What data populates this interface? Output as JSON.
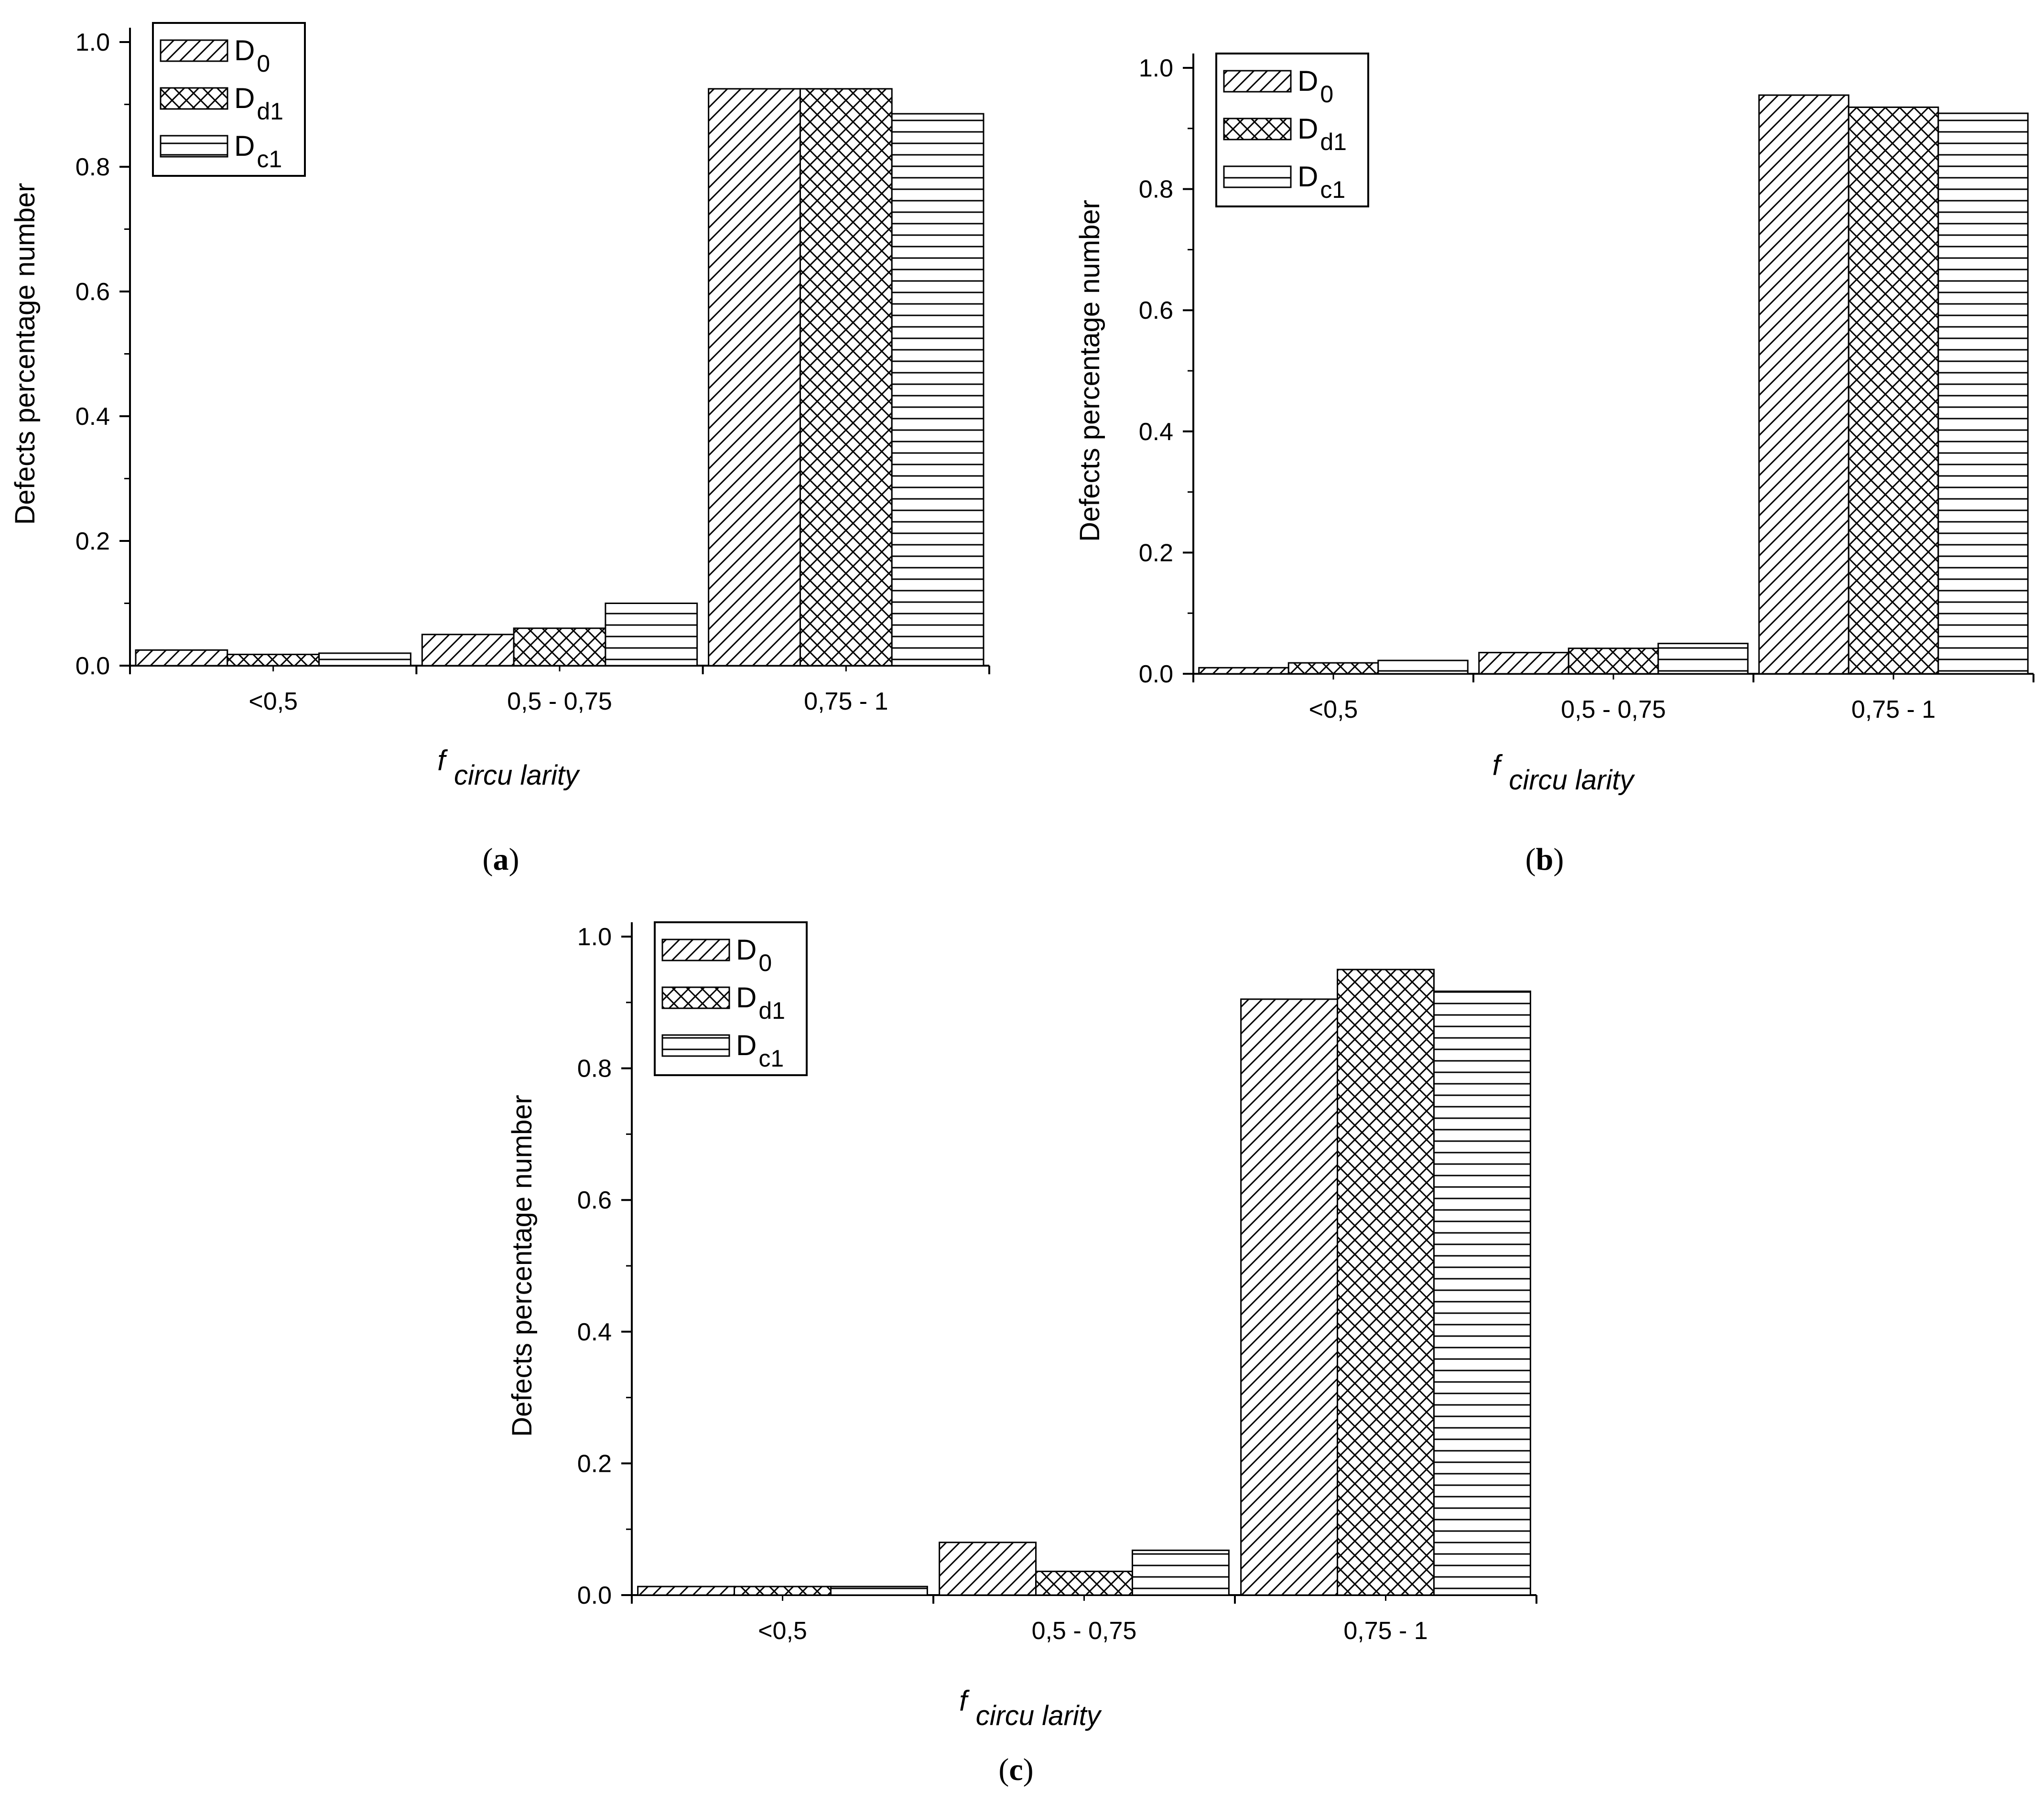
{
  "chart_data": [
    {
      "type": "bar",
      "panel_label": "a",
      "categories": [
        "<0,5",
        "0,5 - 0,75",
        "0,75 - 1"
      ],
      "series": [
        {
          "name": "D0",
          "name_main": "D",
          "name_sub": "0",
          "pattern": "diagonal",
          "values": [
            0.025,
            0.05,
            0.925
          ]
        },
        {
          "name": "Dd1",
          "name_main": "D",
          "name_sub": "d1",
          "pattern": "crosshatch",
          "values": [
            0.018,
            0.06,
            0.925
          ]
        },
        {
          "name": "Dc1",
          "name_main": "D",
          "name_sub": "c1",
          "pattern": "horizontal",
          "values": [
            0.02,
            0.1,
            0.885
          ]
        }
      ],
      "ylabel": "Defects percentage number",
      "xlabel_main": "f",
      "xlabel_sub": "circu larity",
      "ylim": [
        0,
        1.0
      ],
      "yticks": [
        "0.0",
        "0.2",
        "0.4",
        "0.6",
        "0.8",
        "1.0"
      ],
      "legend": "top-left",
      "grid": false
    },
    {
      "type": "bar",
      "panel_label": "b",
      "categories": [
        "<0,5",
        "0,5 - 0,75",
        "0,75 - 1"
      ],
      "series": [
        {
          "name": "D0",
          "name_main": "D",
          "name_sub": "0",
          "pattern": "diagonal",
          "values": [
            0.01,
            0.035,
            0.955
          ]
        },
        {
          "name": "Dd1",
          "name_main": "D",
          "name_sub": "d1",
          "pattern": "crosshatch",
          "values": [
            0.018,
            0.042,
            0.935
          ]
        },
        {
          "name": "Dc1",
          "name_main": "D",
          "name_sub": "c1",
          "pattern": "horizontal",
          "values": [
            0.022,
            0.05,
            0.925
          ]
        }
      ],
      "ylabel": "Defects percentage number",
      "xlabel_main": "f",
      "xlabel_sub": "circu larity",
      "ylim": [
        0,
        1.0
      ],
      "yticks": [
        "0.0",
        "0.2",
        "0.4",
        "0.6",
        "0.8",
        "1.0"
      ],
      "legend": "top-left",
      "grid": false
    },
    {
      "type": "bar",
      "panel_label": "c",
      "categories": [
        "<0,5",
        "0,5 - 0,75",
        "0,75 - 1"
      ],
      "series": [
        {
          "name": "D0",
          "name_main": "D",
          "name_sub": "0",
          "pattern": "diagonal",
          "values": [
            0.013,
            0.08,
            0.905
          ]
        },
        {
          "name": "Dd1",
          "name_main": "D",
          "name_sub": "d1",
          "pattern": "crosshatch",
          "values": [
            0.013,
            0.036,
            0.95
          ]
        },
        {
          "name": "Dc1",
          "name_main": "D",
          "name_sub": "c1",
          "pattern": "horizontal",
          "values": [
            0.013,
            0.068,
            0.917
          ]
        }
      ],
      "ylabel": "Defects percentage number",
      "xlabel_main": "f",
      "xlabel_sub": "circu larity",
      "ylim": [
        0,
        1.0
      ],
      "yticks": [
        "0.0",
        "0.2",
        "0.4",
        "0.6",
        "0.8",
        "1.0"
      ],
      "legend": "top-left",
      "grid": false
    }
  ]
}
